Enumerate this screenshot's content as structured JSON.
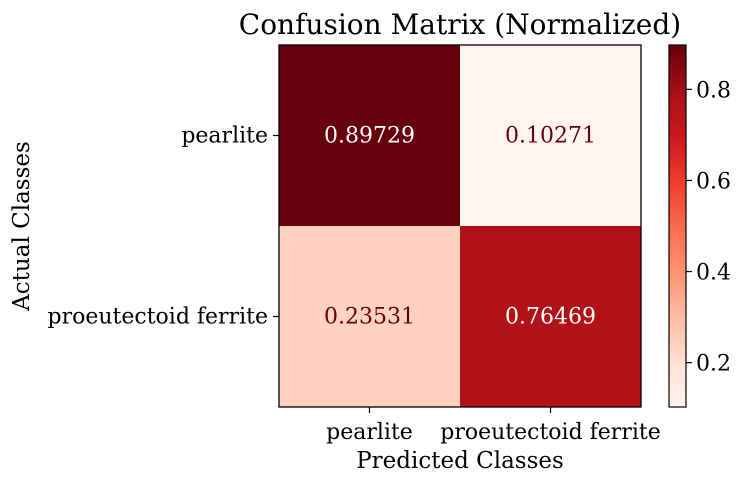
{
  "chart_data": {
    "type": "heatmap",
    "title": "Confusion Matrix (Normalized)",
    "xlabel": "Predicted Classes",
    "ylabel": "Actual Classes",
    "x_categories": [
      "pearlite",
      "proeutectoid ferrite"
    ],
    "y_categories": [
      "pearlite",
      "proeutectoid ferrite"
    ],
    "values": [
      [
        "0.89729",
        "0.10271"
      ],
      [
        "0.23531",
        "0.76469"
      ]
    ],
    "colormap": "Reds",
    "color_range": [
      0.10271,
      0.89729
    ],
    "colorbar_ticks": [
      "0.2",
      "0.4",
      "0.6",
      "0.8"
    ],
    "cell_colors": [
      "#67000d",
      "#fff5f0",
      "#fdd2bf",
      "#b11218"
    ],
    "text_colors": {
      "on_dark": "#ffffff",
      "on_light": "#67000d"
    }
  }
}
